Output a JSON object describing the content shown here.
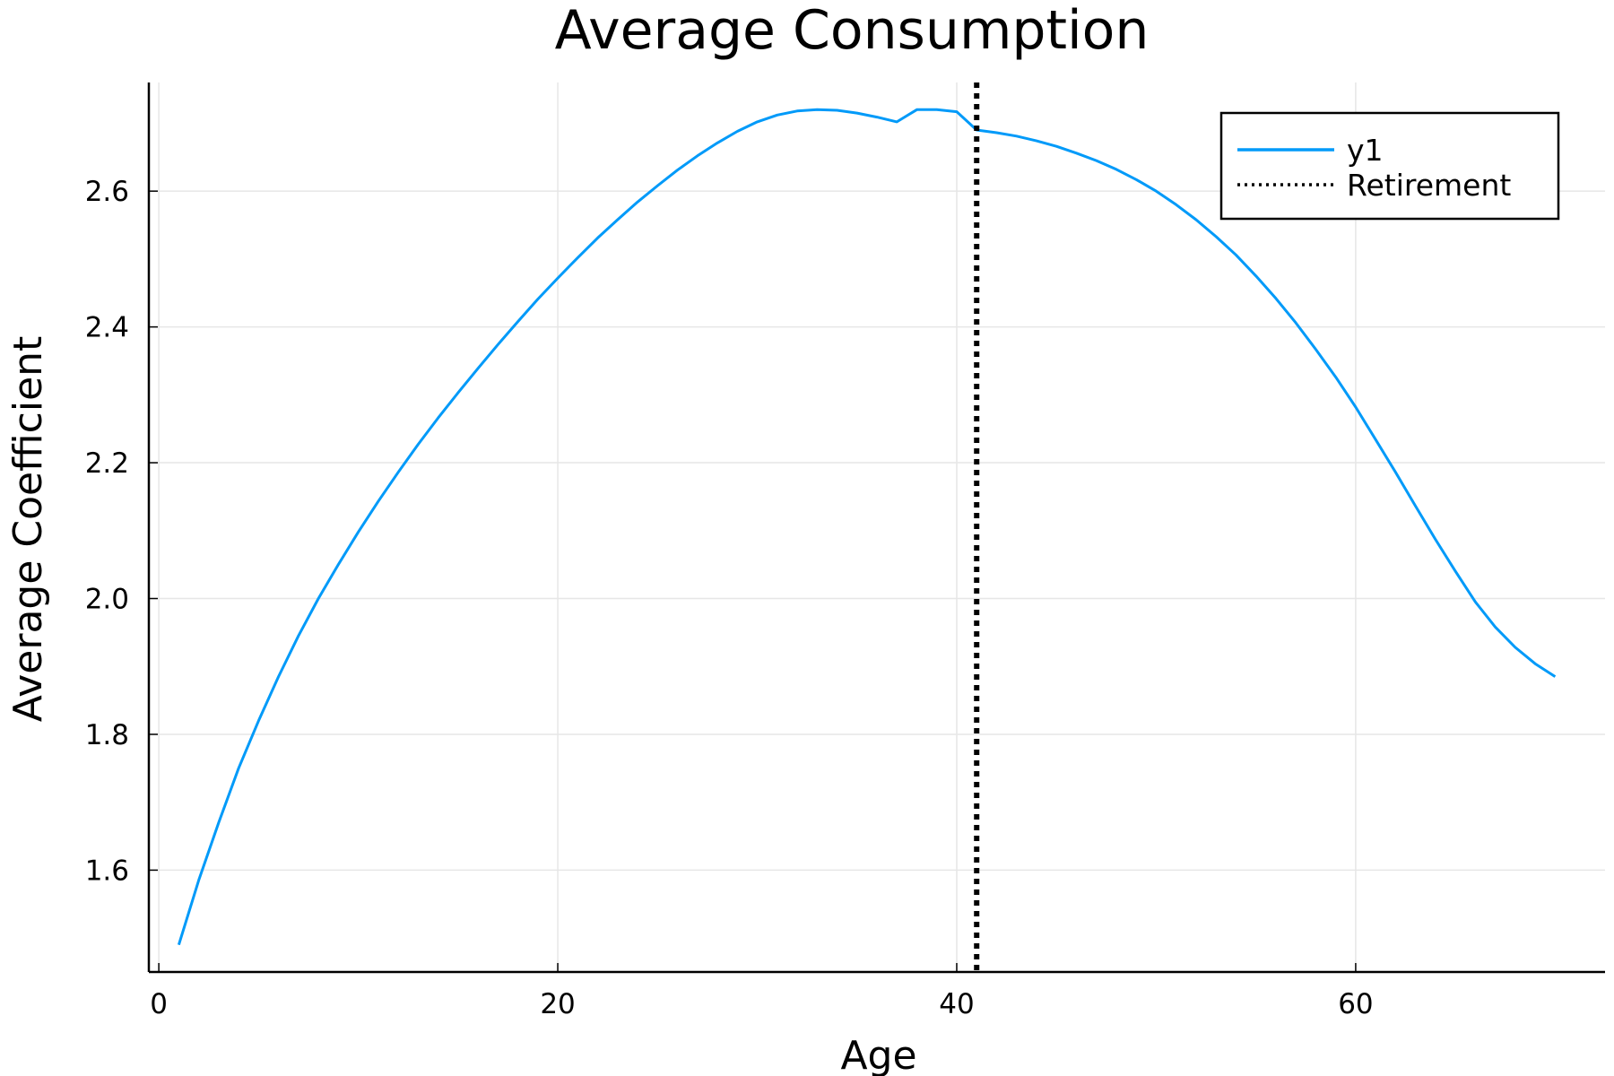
{
  "chart_data": {
    "type": "line",
    "title": "Average Consumption",
    "xlabel": "Age",
    "ylabel": "Average Coefficient",
    "xlim": [
      -0.5,
      72.5
    ],
    "ylim": [
      1.45,
      2.76
    ],
    "xticks": [
      0,
      20,
      40,
      60
    ],
    "yticks": [
      1.6,
      1.8,
      2.0,
      2.2,
      2.4,
      2.6
    ],
    "xtick_labels": [
      "0",
      "20",
      "40",
      "60"
    ],
    "ytick_labels": [
      "1.6",
      "1.8",
      "2.0",
      "2.2",
      "2.4",
      "2.6"
    ],
    "grid": true,
    "legend_position": "top-right",
    "series": [
      {
        "name": "y1",
        "color": "#009af9",
        "style": "solid",
        "x": [
          1,
          2,
          3,
          4,
          5,
          6,
          7,
          8,
          9,
          10,
          11,
          12,
          13,
          14,
          15,
          16,
          17,
          18,
          19,
          20,
          21,
          22,
          23,
          24,
          25,
          26,
          27,
          28,
          29,
          30,
          31,
          32,
          33,
          34,
          35,
          36,
          37,
          38,
          39,
          40,
          41,
          42,
          43,
          44,
          45,
          46,
          47,
          48,
          49,
          50,
          51,
          52,
          53,
          54,
          55,
          56,
          57,
          58,
          59,
          60,
          61,
          62,
          63,
          64,
          65,
          66,
          67,
          68,
          69,
          70
        ],
        "values": [
          1.49,
          1.585,
          1.67,
          1.75,
          1.82,
          1.885,
          1.945,
          2.0,
          2.05,
          2.098,
          2.143,
          2.186,
          2.227,
          2.266,
          2.303,
          2.339,
          2.374,
          2.408,
          2.441,
          2.472,
          2.502,
          2.531,
          2.558,
          2.584,
          2.608,
          2.631,
          2.652,
          2.671,
          2.688,
          2.702,
          2.712,
          2.718,
          2.72,
          2.719,
          2.715,
          2.709,
          2.702,
          2.72,
          2.72,
          2.717,
          2.69,
          2.686,
          2.681,
          2.674,
          2.666,
          2.656,
          2.645,
          2.632,
          2.617,
          2.6,
          2.58,
          2.558,
          2.533,
          2.506,
          2.475,
          2.442,
          2.406,
          2.367,
          2.326,
          2.282,
          2.234,
          2.186,
          2.136,
          2.087,
          2.04,
          1.995,
          1.958,
          1.928,
          1.904,
          1.885
        ]
      },
      {
        "name": "Retirement",
        "color": "#000000",
        "style": "dotted",
        "vline_x": 41
      }
    ]
  }
}
